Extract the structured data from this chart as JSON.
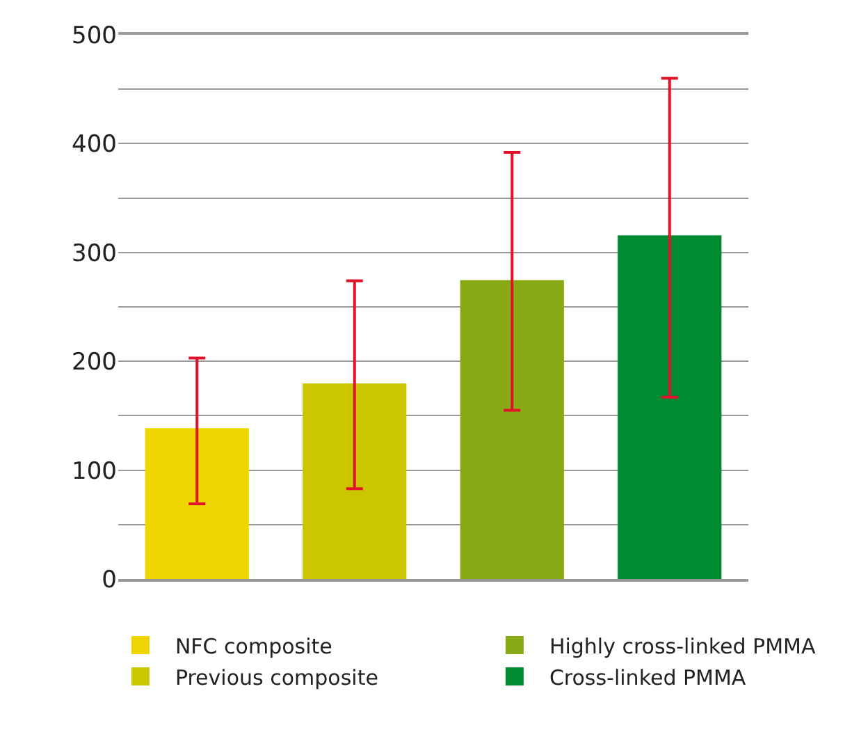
{
  "chart_data": {
    "type": "bar",
    "categories": [
      null,
      null,
      null,
      null
    ],
    "series": [
      {
        "name": "NFC composite",
        "color": "#efd600",
        "values": [
          138,
          null,
          null,
          null
        ],
        "errors": [
          [
            69,
            203
          ],
          null,
          null,
          null
        ]
      },
      {
        "name": "Previous composite",
        "color": "#cbc600",
        "values": [
          null,
          179,
          null,
          null
        ],
        "errors": [
          null,
          [
            83,
            274
          ],
          null,
          null
        ]
      },
      {
        "name": "Highly cross-linked PMMA",
        "color": "#88aa14",
        "values": [
          null,
          null,
          274,
          null
        ],
        "errors": [
          null,
          null,
          [
            155,
            392
          ],
          null
        ]
      },
      {
        "name": "Cross-linked PMMA",
        "color": "#008a32",
        "values": [
          null,
          null,
          null,
          315
        ],
        "errors": [
          null,
          null,
          null,
          [
            167,
            460
          ]
        ]
      }
    ],
    "ylim": [
      0,
      500
    ],
    "yticks": [
      0,
      {
        "value": 50,
        "label": null
      },
      100,
      {
        "value": 150,
        "label": null
      },
      200,
      {
        "value": 250,
        "label": null
      },
      300,
      {
        "value": 350,
        "label": null
      },
      400,
      {
        "value": 450,
        "label": null
      },
      500
    ],
    "grid": true,
    "legend": "bottom"
  }
}
